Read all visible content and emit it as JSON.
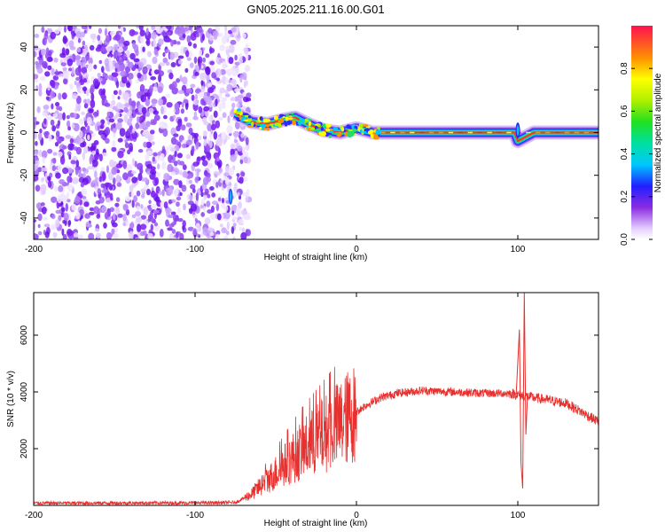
{
  "title": "GN05.2025.211.16.00.G01",
  "chart_data": [
    {
      "type": "heatmap",
      "xlabel": "Height of straight line (km)",
      "ylabel": "Frequency (Hz)",
      "xlim": [
        -200,
        150
      ],
      "ylim": [
        -50,
        50
      ],
      "xticks": [
        -200,
        -100,
        0,
        100
      ],
      "yticks": [
        -40,
        -20,
        0,
        20,
        40
      ],
      "colorbar": {
        "label": "Normalized spectral amplitude",
        "range": [
          0,
          1
        ],
        "ticks": [
          "0.0",
          "0.2",
          "0.4",
          "0.6",
          "0.8"
        ]
      },
      "noise_region_x": [
        -200,
        -72
      ],
      "ridge": [
        {
          "x": -75,
          "y": 9
        },
        {
          "x": -65,
          "y": 5
        },
        {
          "x": -55,
          "y": 4
        },
        {
          "x": -45,
          "y": 6
        },
        {
          "x": -38,
          "y": 7
        },
        {
          "x": -30,
          "y": 4
        },
        {
          "x": -20,
          "y": 1
        },
        {
          "x": -10,
          "y": 0
        },
        {
          "x": 0,
          "y": 2
        },
        {
          "x": 10,
          "y": 0
        },
        {
          "x": 50,
          "y": 0
        },
        {
          "x": 98,
          "y": 0
        },
        {
          "x": 100,
          "y": -4
        },
        {
          "x": 110,
          "y": 0
        },
        {
          "x": 150,
          "y": 0
        }
      ]
    },
    {
      "type": "line",
      "xlabel": "Height of straight line (km)",
      "ylabel": "SNR (10 * v/v)",
      "xlim": [
        -200,
        150
      ],
      "ylim": [
        0,
        7500
      ],
      "xticks": [
        -200,
        -100,
        0,
        100
      ],
      "yticks": [
        2000,
        4000,
        6000
      ],
      "color": "#e8302e",
      "envelope": [
        {
          "x": -200,
          "y": 80
        },
        {
          "x": -100,
          "y": 90
        },
        {
          "x": -75,
          "y": 100
        },
        {
          "x": -65,
          "y": 400
        },
        {
          "x": -55,
          "y": 900
        },
        {
          "x": -45,
          "y": 1400
        },
        {
          "x": -35,
          "y": 1900
        },
        {
          "x": -25,
          "y": 2300
        },
        {
          "x": -15,
          "y": 2700
        },
        {
          "x": -5,
          "y": 3100
        },
        {
          "x": 5,
          "y": 3500
        },
        {
          "x": 15,
          "y": 3800
        },
        {
          "x": 25,
          "y": 3950
        },
        {
          "x": 40,
          "y": 4050
        },
        {
          "x": 60,
          "y": 4000
        },
        {
          "x": 80,
          "y": 3950
        },
        {
          "x": 95,
          "y": 3950
        },
        {
          "x": 110,
          "y": 3800
        },
        {
          "x": 130,
          "y": 3600
        },
        {
          "x": 150,
          "y": 2950
        }
      ],
      "spikes": [
        {
          "x": 101,
          "y": 6200
        },
        {
          "x": 104,
          "y": 7500
        },
        {
          "x": 103,
          "y": 600
        }
      ]
    }
  ]
}
